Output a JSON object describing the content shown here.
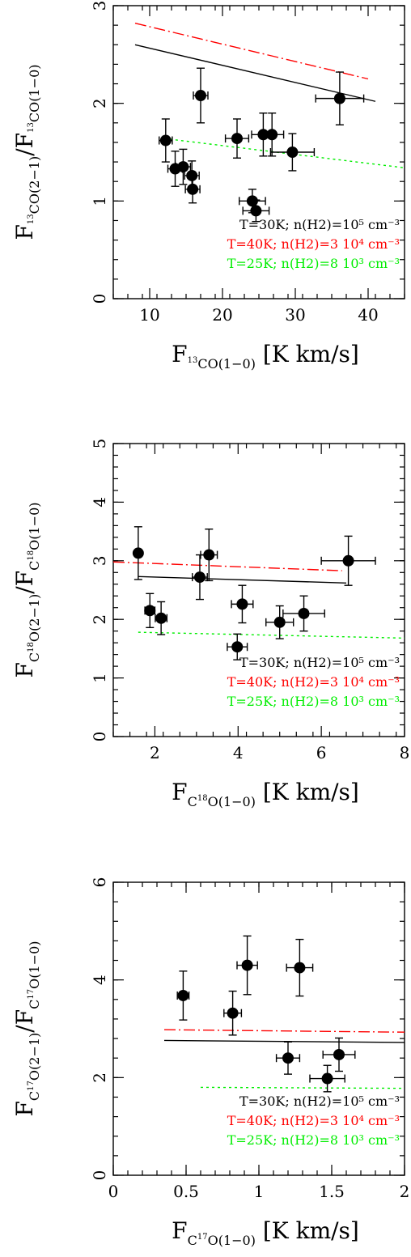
{
  "chart_data": [
    {
      "type": "scatter",
      "xlabel": {
        "base": "F",
        "sub": "CO(1−0)",
        "iso_mass": "13",
        "unit": "[K km/s]"
      },
      "ylabel": {
        "base": "F",
        "sub1": "CO(2−1)",
        "sub2": "CO(1−0)",
        "iso_mass": "13"
      },
      "xlim": [
        5,
        45
      ],
      "ylim": [
        0,
        3
      ],
      "xticks": [
        10,
        20,
        30,
        40
      ],
      "yticks": [
        0,
        1,
        2,
        3
      ],
      "x_minor_step": 2,
      "y_minor_step": 0.2,
      "points": [
        {
          "x": 12.2,
          "y": 1.62,
          "xerr": 0.9,
          "yerr": 0.22
        },
        {
          "x": 13.5,
          "y": 1.33,
          "xerr": 1.0,
          "yerr": 0.18
        },
        {
          "x": 14.6,
          "y": 1.35,
          "xerr": 1.0,
          "yerr": 0.18
        },
        {
          "x": 15.8,
          "y": 1.26,
          "xerr": 1.0,
          "yerr": 0.15
        },
        {
          "x": 15.9,
          "y": 1.12,
          "xerr": 1.0,
          "yerr": 0.14
        },
        {
          "x": 17.0,
          "y": 2.08,
          "xerr": 1.0,
          "yerr": 0.28
        },
        {
          "x": 22.0,
          "y": 1.64,
          "xerr": 1.6,
          "yerr": 0.2
        },
        {
          "x": 24.1,
          "y": 1.0,
          "xerr": 1.8,
          "yerr": 0.12
        },
        {
          "x": 24.6,
          "y": 0.9,
          "xerr": 1.8,
          "yerr": 0.11
        },
        {
          "x": 25.6,
          "y": 1.68,
          "xerr": 1.6,
          "yerr": 0.22
        },
        {
          "x": 26.8,
          "y": 1.68,
          "xerr": 1.6,
          "yerr": 0.22
        },
        {
          "x": 29.6,
          "y": 1.5,
          "xerr": 3.0,
          "yerr": 0.19
        },
        {
          "x": 36.1,
          "y": 2.05,
          "xerr": 3.3,
          "yerr": 0.27
        }
      ],
      "models": [
        {
          "name": "T=30K; n(H2)=10⁵ cm⁻³",
          "color": "#000000",
          "dash": "",
          "x": [
            8,
            41
          ],
          "y": [
            2.6,
            2.02
          ]
        },
        {
          "name": "T=40K; n(H2)=3 10⁴ cm⁻³",
          "color": "#ff0000",
          "dash": "14,4,2,4",
          "x": [
            8,
            40
          ],
          "y": [
            2.82,
            2.25
          ]
        },
        {
          "name": "T=25K; n(H2)=8 10³ cm⁻³",
          "color": "#00ee00",
          "dash": "3,4",
          "x": [
            12,
            45
          ],
          "y": [
            1.64,
            1.34
          ]
        }
      ],
      "legend_position": "bottom-right"
    },
    {
      "type": "scatter",
      "xlabel": {
        "base": "F",
        "sub": "O(1−0)",
        "pre": "C",
        "iso_mass": "18",
        "unit": "[K km/s]"
      },
      "ylabel": {
        "base": "F",
        "sub1": "O(2−1)",
        "sub2": "O(1−0)",
        "pre": "C",
        "iso_mass": "18"
      },
      "xlim": [
        1,
        8
      ],
      "ylim": [
        0,
        5
      ],
      "xticks": [
        2,
        4,
        6,
        8
      ],
      "yticks": [
        0,
        1,
        2,
        3,
        4,
        5
      ],
      "x_minor_step": 0.4,
      "y_minor_step": 0.2,
      "points": [
        {
          "x": 1.6,
          "y": 3.13,
          "xerr": 0.08,
          "yerr": 0.45
        },
        {
          "x": 1.88,
          "y": 2.15,
          "xerr": 0.12,
          "yerr": 0.29
        },
        {
          "x": 2.15,
          "y": 2.02,
          "xerr": 0.14,
          "yerr": 0.28
        },
        {
          "x": 3.08,
          "y": 2.72,
          "xerr": 0.18,
          "yerr": 0.38
        },
        {
          "x": 3.3,
          "y": 3.1,
          "xerr": 0.2,
          "yerr": 0.44
        },
        {
          "x": 3.98,
          "y": 1.53,
          "xerr": 0.24,
          "yerr": 0.22
        },
        {
          "x": 4.1,
          "y": 2.26,
          "xerr": 0.26,
          "yerr": 0.32
        },
        {
          "x": 5.0,
          "y": 1.95,
          "xerr": 0.33,
          "yerr": 0.28
        },
        {
          "x": 5.58,
          "y": 2.1,
          "xerr": 0.5,
          "yerr": 0.3
        },
        {
          "x": 6.65,
          "y": 3.0,
          "xerr": 0.65,
          "yerr": 0.42
        }
      ],
      "models": [
        {
          "name": "T=30K; n(H2)=10⁵ cm⁻³",
          "color": "#000000",
          "dash": "",
          "x": [
            1.6,
            6.6
          ],
          "y": [
            2.73,
            2.62
          ]
        },
        {
          "name": "T=40K; n(H2)=3 10⁴ cm⁻³",
          "color": "#ff0000",
          "dash": "14,4,2,4",
          "x": [
            1.0,
            6.5
          ],
          "y": [
            2.98,
            2.83
          ]
        },
        {
          "name": "T=25K; n(H2)=8 10³ cm⁻³",
          "color": "#00ee00",
          "dash": "3,4",
          "x": [
            1.6,
            8.0
          ],
          "y": [
            1.78,
            1.68
          ]
        }
      ],
      "legend_position": "bottom-right"
    },
    {
      "type": "scatter",
      "xlabel": {
        "base": "F",
        "sub": "O(1−0)",
        "pre": "C",
        "iso_mass": "17",
        "unit": "[K km/s]"
      },
      "ylabel": {
        "base": "F",
        "sub1": "O(2−1)",
        "sub2": "O(1−0)",
        "pre": "C",
        "iso_mass": "17"
      },
      "xlim": [
        0,
        2
      ],
      "ylim": [
        0,
        6
      ],
      "xticks": [
        0,
        0.5,
        1,
        1.5,
        2
      ],
      "yticks": [
        0,
        2,
        4,
        6
      ],
      "x_minor_step": 0.1,
      "y_minor_step": 0.4,
      "points": [
        {
          "x": 0.48,
          "y": 3.68,
          "xerr": 0.04,
          "yerr": 0.5
        },
        {
          "x": 0.82,
          "y": 3.32,
          "xerr": 0.06,
          "yerr": 0.45
        },
        {
          "x": 0.92,
          "y": 4.3,
          "xerr": 0.07,
          "yerr": 0.6
        },
        {
          "x": 1.2,
          "y": 2.4,
          "xerr": 0.08,
          "yerr": 0.33
        },
        {
          "x": 1.28,
          "y": 4.25,
          "xerr": 0.09,
          "yerr": 0.58
        },
        {
          "x": 1.47,
          "y": 1.98,
          "xerr": 0.12,
          "yerr": 0.27
        },
        {
          "x": 1.55,
          "y": 2.47,
          "xerr": 0.11,
          "yerr": 0.34
        }
      ],
      "models": [
        {
          "name": "T=30K; n(H2)=10⁵ cm⁻³",
          "color": "#000000",
          "dash": "",
          "x": [
            0.35,
            2.0
          ],
          "y": [
            2.76,
            2.72
          ]
        },
        {
          "name": "T=40K; n(H2)=3 10⁴ cm⁻³",
          "color": "#ff0000",
          "dash": "14,4,2,4",
          "x": [
            0.35,
            2.0
          ],
          "y": [
            2.98,
            2.93
          ]
        },
        {
          "name": "T=25K; n(H2)=8 10³ cm⁻³",
          "color": "#00ee00",
          "dash": "3,4",
          "x": [
            0.6,
            2.0
          ],
          "y": [
            1.8,
            1.78
          ]
        }
      ],
      "legend_position": "bottom-right"
    }
  ]
}
